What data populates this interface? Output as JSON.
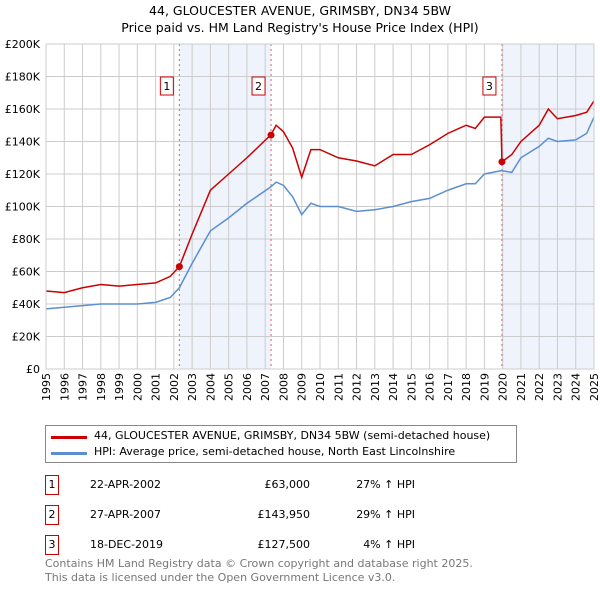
{
  "chart_data": {
    "type": "line",
    "title": "44, GLOUCESTER AVENUE, GRIMSBY, DN34 5BW",
    "subtitle": "Price paid vs. HM Land Registry's House Price Index (HPI)",
    "xlim": [
      1995,
      2025
    ],
    "ylim": [
      0,
      200000
    ],
    "yticks": [
      "£0",
      "£20K",
      "£40K",
      "£60K",
      "£80K",
      "£100K",
      "£120K",
      "£140K",
      "£160K",
      "£180K",
      "£200K"
    ],
    "xticks": [
      "1995",
      "1996",
      "1997",
      "1998",
      "1999",
      "2000",
      "2001",
      "2002",
      "2003",
      "2004",
      "2005",
      "2006",
      "2007",
      "2008",
      "2009",
      "2010",
      "2011",
      "2012",
      "2013",
      "2014",
      "2015",
      "2016",
      "2017",
      "2018",
      "2019",
      "2020",
      "2021",
      "2022",
      "2023",
      "2024",
      "2025"
    ],
    "grid": true,
    "series": [
      {
        "name": "44, GLOUCESTER AVENUE, GRIMSBY, DN34 5BW (semi-detached house)",
        "color": "#cc0000",
        "x": [
          1995,
          1996,
          1997,
          1998,
          1999,
          2000,
          2001,
          2001.8,
          2002.3,
          2003,
          2004,
          2005,
          2006,
          2007.3,
          2007.6,
          2008,
          2008.5,
          2009,
          2009.5,
          2010,
          2011,
          2012,
          2013,
          2014,
          2015,
          2016,
          2017,
          2018,
          2018.5,
          2019,
          2019.9,
          2019.96,
          2020.5,
          2021,
          2022,
          2022.5,
          2023,
          2024,
          2024.6,
          2025
        ],
        "y": [
          48000,
          47000,
          50000,
          52000,
          51000,
          52000,
          53000,
          57000,
          63000,
          83000,
          110000,
          120000,
          130000,
          143950,
          150000,
          146000,
          136000,
          118000,
          135000,
          135000,
          130000,
          128000,
          125000,
          132000,
          132000,
          138000,
          145000,
          150000,
          148000,
          155000,
          155000,
          127500,
          132000,
          140000,
          150000,
          160000,
          154000,
          156000,
          158000,
          165000
        ]
      },
      {
        "name": "HPI: Average price, semi-detached house, North East Lincolnshire",
        "color": "#5b8fd0",
        "x": [
          1995,
          1996,
          1997,
          1998,
          1999,
          2000,
          2001,
          2001.8,
          2002.3,
          2003,
          2004,
          2005,
          2006,
          2007.3,
          2007.6,
          2008,
          2008.5,
          2009,
          2009.5,
          2010,
          2011,
          2012,
          2013,
          2014,
          2015,
          2016,
          2017,
          2018,
          2018.5,
          2019,
          2019.9,
          2019.96,
          2020.5,
          2021,
          2022,
          2022.5,
          2023,
          2024,
          2024.6,
          2025
        ],
        "y": [
          37000,
          38000,
          39000,
          40000,
          40000,
          40000,
          41000,
          44000,
          50000,
          65000,
          85000,
          93000,
          102000,
          112000,
          115000,
          113000,
          106000,
          95000,
          102000,
          100000,
          100000,
          97000,
          98000,
          100000,
          103000,
          105000,
          110000,
          114000,
          114000,
          120000,
          122000,
          122000,
          121000,
          130000,
          137000,
          142000,
          140000,
          141000,
          145000,
          155000
        ]
      }
    ],
    "annotations": [
      {
        "label": "1",
        "x": 2002.3,
        "y": 63000
      },
      {
        "label": "2",
        "x": 2007.32,
        "y": 143950
      },
      {
        "label": "3",
        "x": 2019.96,
        "y": 127500
      }
    ],
    "shaded": [
      [
        2002.3,
        2007.32
      ],
      [
        2019.96,
        2025
      ]
    ]
  },
  "legend": {
    "red": "44, GLOUCESTER AVENUE, GRIMSBY, DN34 5BW (semi-detached house)",
    "blue": "HPI: Average price, semi-detached house, North East Lincolnshire"
  },
  "sales": [
    {
      "n": "1",
      "date": "22-APR-2002",
      "price": "£63,000",
      "hpi": "27% ↑ HPI"
    },
    {
      "n": "2",
      "date": "27-APR-2007",
      "price": "£143,950",
      "hpi": "29% ↑ HPI"
    },
    {
      "n": "3",
      "date": "18-DEC-2019",
      "price": "£127,500",
      "hpi": "4% ↑ HPI"
    }
  ],
  "footer": {
    "line1": "Contains HM Land Registry data © Crown copyright and database right 2025.",
    "line2": "This data is licensed under the Open Government Licence v3.0."
  }
}
